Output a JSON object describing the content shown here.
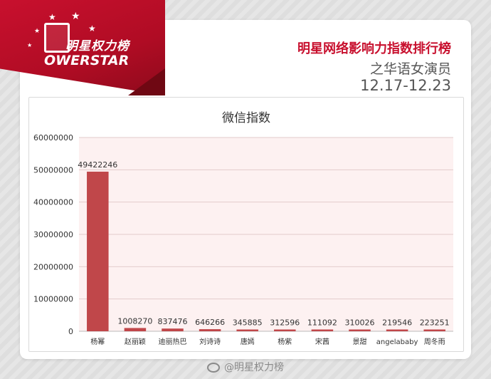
{
  "brand": {
    "cn": "明星权力榜",
    "en": "OWERSTAR",
    "icon": "fist-icon"
  },
  "header": {
    "title": "明星网络影响力指数排行榜",
    "subtitle": "之华语女演员",
    "date_range": "12.17-12.23"
  },
  "footer": {
    "text": "@明星权力榜",
    "icon": "weibo-icon"
  },
  "colors": {
    "brand_red": "#c8102e",
    "bar": "#c0474a",
    "plot_bg": "#fdf1f1"
  },
  "chart_data": {
    "type": "bar",
    "title": "微信指数",
    "xlabel": "",
    "ylabel": "",
    "categories": [
      "杨幂",
      "赵丽颖",
      "迪丽热巴",
      "刘诗诗",
      "唐嫣",
      "杨紫",
      "宋茜",
      "景甜",
      "angelababy",
      "周冬雨"
    ],
    "values": [
      49422246,
      1008270,
      837476,
      646266,
      345885,
      312596,
      111092,
      310026,
      219546,
      223251
    ],
    "ylim": [
      0,
      60000000
    ],
    "yticks": [
      0,
      10000000,
      20000000,
      30000000,
      40000000,
      50000000,
      60000000
    ],
    "grid": true,
    "legend": "none"
  }
}
